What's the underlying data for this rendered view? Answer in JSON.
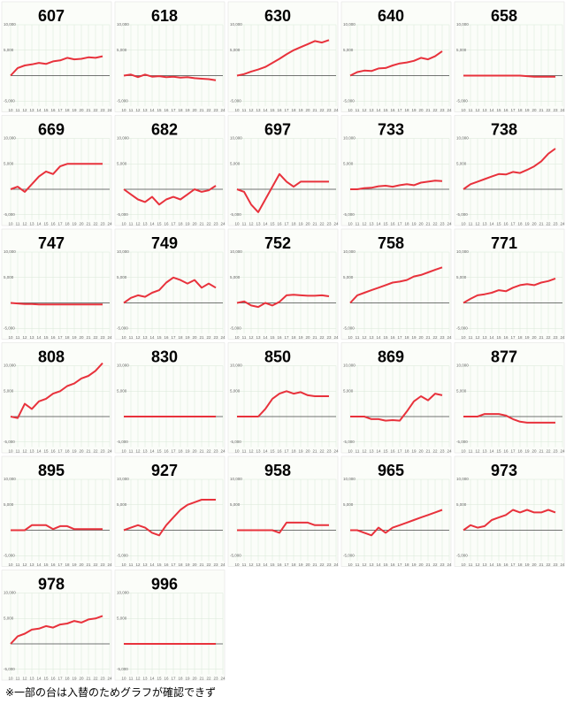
{
  "axes": {
    "x": [
      10,
      11,
      12,
      13,
      14,
      15,
      16,
      17,
      18,
      19,
      20,
      21,
      22,
      23
    ],
    "xlim": [
      10,
      24
    ],
    "xticks": [
      10,
      11,
      12,
      13,
      14,
      15,
      16,
      17,
      18,
      19,
      20,
      21,
      22,
      23,
      24
    ],
    "ylim": [
      -6000,
      10000
    ],
    "yticks": [
      {
        "value": 10000,
        "label": "10,000"
      },
      {
        "value": 5000,
        "label": "5,000"
      },
      {
        "value": -5000,
        "label": "-5,000"
      }
    ],
    "color": "#e8323c",
    "grid": true
  },
  "chart_data": [
    {
      "type": "line",
      "title": "607",
      "values": [
        0,
        1500,
        2000,
        2200,
        2500,
        2300,
        2800,
        3000,
        3500,
        3200,
        3300,
        3600,
        3500,
        3800
      ]
    },
    {
      "type": "line",
      "title": "618",
      "values": [
        0,
        200,
        -300,
        200,
        -200,
        -100,
        -300,
        -200,
        -400,
        -300,
        -500,
        -600,
        -700,
        -900
      ]
    },
    {
      "type": "line",
      "title": "630",
      "values": [
        0,
        300,
        800,
        1200,
        1700,
        2500,
        3300,
        4200,
        5000,
        5600,
        6200,
        6800,
        6500,
        7000
      ]
    },
    {
      "type": "line",
      "title": "640",
      "values": [
        0,
        700,
        1000,
        900,
        1400,
        1500,
        2000,
        2400,
        2600,
        2900,
        3500,
        3200,
        3800,
        4800
      ]
    },
    {
      "type": "line",
      "title": "658",
      "values": [
        0,
        0,
        0,
        0,
        0,
        0,
        0,
        0,
        0,
        -100,
        -200,
        -200,
        -200,
        -200
      ]
    },
    {
      "type": "line",
      "title": "669",
      "values": [
        0,
        500,
        -500,
        1000,
        2500,
        3500,
        3000,
        4500,
        5000,
        5000,
        5000,
        5000,
        5000,
        5000
      ]
    },
    {
      "type": "line",
      "title": "682",
      "values": [
        0,
        -1000,
        -2000,
        -2500,
        -1500,
        -3000,
        -2000,
        -1500,
        -2000,
        -1000,
        0,
        -500,
        -200,
        700
      ]
    },
    {
      "type": "line",
      "title": "697",
      "values": [
        0,
        -500,
        -3000,
        -4500,
        -2000,
        500,
        3000,
        1500,
        500,
        1500,
        1500,
        1500,
        1500,
        1500
      ]
    },
    {
      "type": "line",
      "title": "733",
      "values": [
        0,
        0,
        200,
        300,
        600,
        700,
        500,
        800,
        1000,
        800,
        1300,
        1500,
        1700,
        1600
      ]
    },
    {
      "type": "line",
      "title": "738",
      "values": [
        0,
        1000,
        1500,
        2000,
        2500,
        3000,
        2900,
        3400,
        3200,
        3800,
        4500,
        5500,
        7000,
        8000
      ]
    },
    {
      "type": "line",
      "title": "747",
      "values": [
        0,
        -100,
        -200,
        -200,
        -300,
        -300,
        -300,
        -300,
        -300,
        -300,
        -300,
        -300,
        -300,
        -300
      ]
    },
    {
      "type": "line",
      "title": "749",
      "values": [
        0,
        1000,
        1500,
        1200,
        2000,
        2500,
        4000,
        5000,
        4500,
        3800,
        4500,
        3000,
        3800,
        3000
      ]
    },
    {
      "type": "line",
      "title": "752",
      "values": [
        0,
        300,
        -500,
        -800,
        0,
        -500,
        200,
        1500,
        1600,
        1500,
        1400,
        1400,
        1500,
        1300
      ]
    },
    {
      "type": "line",
      "title": "758",
      "values": [
        0,
        1500,
        2000,
        2500,
        3000,
        3500,
        4000,
        4200,
        4500,
        5200,
        5500,
        6000,
        6500,
        7000
      ]
    },
    {
      "type": "line",
      "title": "771",
      "values": [
        0,
        800,
        1500,
        1700,
        2000,
        2500,
        2300,
        3000,
        3500,
        3700,
        3500,
        4000,
        4300,
        4800
      ]
    },
    {
      "type": "line",
      "title": "808",
      "values": [
        0,
        -300,
        2500,
        1500,
        3000,
        3500,
        4500,
        5000,
        6000,
        6500,
        7500,
        8000,
        9000,
        10500
      ]
    },
    {
      "type": "line",
      "title": "830",
      "values": [
        0,
        0,
        0,
        0,
        0,
        0,
        0,
        0,
        0,
        0,
        0,
        0,
        0,
        0
      ]
    },
    {
      "type": "line",
      "title": "850",
      "values": [
        0,
        0,
        0,
        0,
        1500,
        3500,
        4500,
        5000,
        4500,
        4800,
        4200,
        4000,
        4000,
        4000
      ]
    },
    {
      "type": "line",
      "title": "869",
      "values": [
        0,
        0,
        0,
        -500,
        -500,
        -800,
        -700,
        -800,
        1000,
        3000,
        4000,
        3200,
        4500,
        4200
      ]
    },
    {
      "type": "line",
      "title": "877",
      "values": [
        0,
        0,
        0,
        500,
        500,
        500,
        200,
        -500,
        -1000,
        -1200,
        -1200,
        -1200,
        -1200,
        -1200
      ]
    },
    {
      "type": "line",
      "title": "895",
      "values": [
        0,
        0,
        0,
        1000,
        1000,
        1000,
        200,
        800,
        800,
        200,
        200,
        200,
        200,
        200
      ]
    },
    {
      "type": "line",
      "title": "927",
      "values": [
        0,
        500,
        1000,
        500,
        -500,
        -1000,
        1000,
        2500,
        4000,
        5000,
        5500,
        6000,
        6000,
        6000
      ]
    },
    {
      "type": "line",
      "title": "958",
      "values": [
        0,
        0,
        0,
        0,
        0,
        0,
        -500,
        1500,
        1500,
        1500,
        1500,
        1000,
        1000,
        1000
      ]
    },
    {
      "type": "line",
      "title": "965",
      "values": [
        0,
        0,
        -500,
        -1000,
        500,
        -500,
        500,
        1000,
        1500,
        2000,
        2500,
        3000,
        3500,
        4000
      ]
    },
    {
      "type": "line",
      "title": "973",
      "values": [
        0,
        1000,
        500,
        800,
        2000,
        2500,
        3000,
        4000,
        3500,
        4000,
        3500,
        3500,
        4000,
        3500
      ]
    },
    {
      "type": "line",
      "title": "978",
      "values": [
        0,
        1500,
        2000,
        2800,
        3000,
        3500,
        3200,
        3800,
        4000,
        4500,
        4200,
        4800,
        5000,
        5500
      ]
    },
    {
      "type": "line",
      "title": "996",
      "values": [
        0,
        0,
        0,
        0,
        0,
        0,
        0,
        0,
        0,
        0,
        0,
        0,
        0,
        0
      ]
    }
  ],
  "note": "※一部の台は入替のためグラフが確認できず"
}
